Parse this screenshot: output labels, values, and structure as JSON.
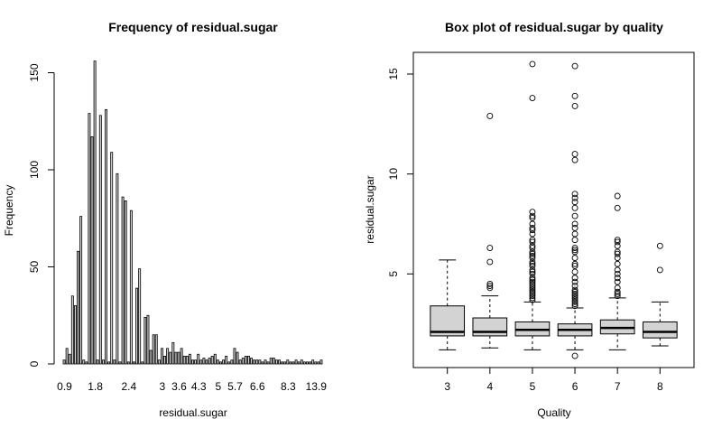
{
  "chart_data": [
    {
      "type": "bar",
      "title": "Frequency of residual.sugar",
      "xlabel": "residual.sugar",
      "ylabel": "Frequency",
      "ylim": [
        0,
        160
      ],
      "y_ticks": [
        0,
        50,
        100,
        150
      ],
      "x_tick_labels": [
        "0.9",
        "1.8",
        "2.4",
        "3",
        "3.6",
        "4.3",
        "5",
        "5.7",
        "6.6",
        "8.3",
        "13.9"
      ],
      "grid": false,
      "bar_fill": "#d3d3d3",
      "categories": [
        "0.9",
        "1",
        "1.1",
        "1.2",
        "1.3",
        "1.4",
        "1.5",
        "1.6",
        "1.65",
        "1.7",
        "1.75",
        "1.8",
        "1.85",
        "1.9",
        "1.95",
        "2",
        "2.05",
        "2.1",
        "2.15",
        "2.2",
        "2.25",
        "2.3",
        "2.35",
        "2.4",
        "2.45",
        "2.5",
        "2.55",
        "2.6",
        "2.65",
        "2.7",
        "2.75",
        "2.8",
        "2.85",
        "2.9",
        "2.95",
        "3",
        "3.1",
        "3.2",
        "3.3",
        "3.4",
        "3.5",
        "3.6",
        "3.7",
        "3.8",
        "3.9",
        "4",
        "4.1",
        "4.2",
        "4.3",
        "4.4",
        "4.5",
        "4.6",
        "4.7",
        "4.8",
        "4.9",
        "5",
        "5.1",
        "5.2",
        "5.4",
        "5.5",
        "5.6",
        "5.7",
        "5.8",
        "5.9",
        "6",
        "6.1",
        "6.2",
        "6.3",
        "6.4",
        "6.6",
        "6.7",
        "6.9",
        "7",
        "7.2",
        "7.3",
        "7.5",
        "7.8",
        "7.9",
        "8.1",
        "8.2",
        "8.3",
        "8.6",
        "8.8",
        "8.9",
        "9",
        "10.7",
        "11",
        "12.9",
        "13.4",
        "13.8",
        "13.9",
        "15.4",
        "15.5"
      ],
      "values": [
        2,
        8,
        5,
        35,
        30,
        58,
        76,
        2,
        1,
        129,
        117,
        156,
        2,
        128,
        2,
        131,
        1,
        109,
        2,
        98,
        1,
        86,
        84,
        1,
        79,
        1,
        39,
        49,
        1,
        24,
        25,
        7,
        15,
        15,
        2,
        8,
        4,
        8,
        6,
        11,
        6,
        6,
        8,
        4,
        4,
        5,
        2,
        2,
        5,
        2,
        3,
        2,
        3,
        4,
        5,
        2,
        1,
        2,
        4,
        1,
        2,
        8,
        6,
        2,
        3,
        4,
        4,
        3,
        2,
        2,
        2,
        1,
        2,
        1,
        3,
        3,
        2,
        2,
        1,
        1,
        2,
        1,
        1,
        2,
        1,
        2,
        1,
        1,
        1,
        2,
        1,
        1,
        2
      ]
    },
    {
      "type": "box",
      "title": "Box plot of residual.sugar by quality",
      "xlabel": "Quality",
      "ylabel": "residual.sugar",
      "ylim": [
        0.9,
        15.5
      ],
      "y_ticks": [
        5,
        10,
        15
      ],
      "grid": false,
      "box_fill": "#d3d3d3",
      "categories": [
        "3",
        "4",
        "5",
        "6",
        "7",
        "8"
      ],
      "boxes": [
        {
          "whisker_low": 1.2,
          "q1": 1.9,
          "median": 2.1,
          "q3": 3.4,
          "whisker_high": 5.7,
          "outliers": []
        },
        {
          "whisker_low": 1.3,
          "q1": 1.9,
          "median": 2.1,
          "q3": 2.8,
          "whisker_high": 3.9,
          "outliers": [
            4.3,
            4.4,
            4.5,
            5.6,
            6.3,
            12.9
          ]
        },
        {
          "whisker_low": 1.2,
          "q1": 1.9,
          "median": 2.2,
          "q3": 2.6,
          "whisker_high": 3.6,
          "outliers": [
            3.7,
            3.8,
            3.9,
            4.0,
            4.1,
            4.2,
            4.3,
            4.4,
            4.5,
            4.6,
            4.7,
            4.8,
            5.0,
            5.1,
            5.2,
            5.4,
            5.5,
            5.6,
            5.8,
            5.9,
            6.0,
            6.1,
            6.3,
            6.4,
            6.6,
            6.7,
            7.0,
            7.2,
            7.3,
            7.5,
            7.8,
            7.9,
            8.1,
            13.8,
            15.5
          ]
        },
        {
          "whisker_low": 1.2,
          "q1": 1.9,
          "median": 2.2,
          "q3": 2.5,
          "whisker_high": 3.3,
          "outliers": [
            0.9,
            3.4,
            3.5,
            3.6,
            3.7,
            3.8,
            3.9,
            4.0,
            4.1,
            4.2,
            4.4,
            4.6,
            4.8,
            5.1,
            5.4,
            5.5,
            5.8,
            6.1,
            6.2,
            6.3,
            6.7,
            7.0,
            7.3,
            7.5,
            7.9,
            8.3,
            8.6,
            8.8,
            9.0,
            10.7,
            11.0,
            13.4,
            13.9,
            15.4
          ]
        },
        {
          "whisker_low": 1.2,
          "q1": 2.0,
          "median": 2.3,
          "q3": 2.7,
          "whisker_high": 3.8,
          "outliers": [
            3.9,
            4.0,
            4.1,
            4.3,
            4.6,
            4.8,
            5.0,
            5.2,
            5.5,
            5.8,
            6.0,
            6.1,
            6.4,
            6.6,
            6.7,
            8.3,
            8.9
          ]
        },
        {
          "whisker_low": 1.4,
          "q1": 1.8,
          "median": 2.1,
          "q3": 2.6,
          "whisker_high": 3.6,
          "outliers": [
            5.2,
            6.4
          ]
        }
      ]
    }
  ]
}
